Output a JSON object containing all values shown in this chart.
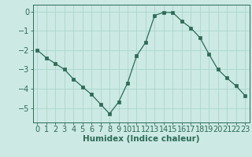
{
  "x": [
    0,
    1,
    2,
    3,
    4,
    5,
    6,
    7,
    8,
    9,
    10,
    11,
    12,
    13,
    14,
    15,
    16,
    17,
    18,
    19,
    20,
    21,
    22,
    23
  ],
  "y": [
    -2.0,
    -2.4,
    -2.7,
    -3.0,
    -3.5,
    -3.9,
    -4.3,
    -4.8,
    -5.3,
    -4.7,
    -3.7,
    -2.3,
    -1.6,
    -0.2,
    -0.05,
    -0.05,
    -0.5,
    -0.85,
    -1.35,
    -2.2,
    -3.0,
    -3.45,
    -3.85,
    -4.35
  ],
  "xlabel": "Humidex (Indice chaleur)",
  "bg_color": "#cce9e4",
  "grid_color": "#aad6cc",
  "line_color": "#2d6b55",
  "marker_color": "#2d6b55",
  "ylim": [
    -5.75,
    0.35
  ],
  "yticks": [
    0,
    -1,
    -2,
    -3,
    -4,
    -5
  ],
  "xticks": [
    0,
    1,
    2,
    3,
    4,
    5,
    6,
    7,
    8,
    9,
    10,
    11,
    12,
    13,
    14,
    15,
    16,
    17,
    18,
    19,
    20,
    21,
    22,
    23
  ],
  "tick_fontsize": 7,
  "xlabel_fontsize": 7.5
}
